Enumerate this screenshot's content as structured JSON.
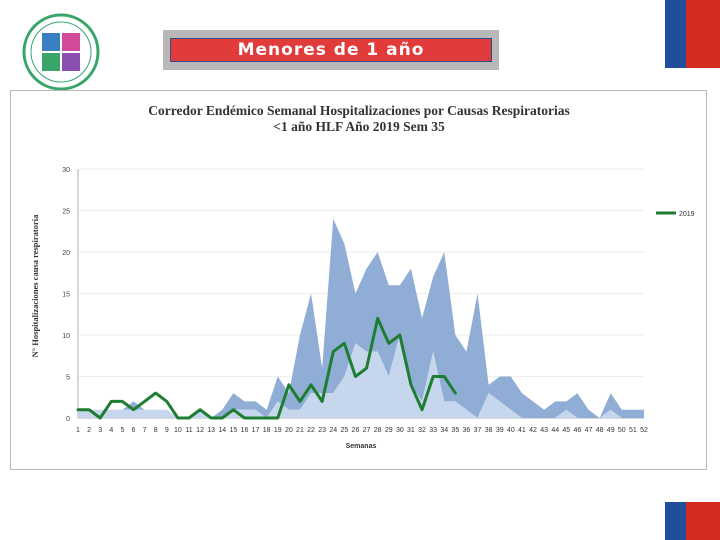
{
  "banner": {
    "title": "Menores de 1 año"
  },
  "colors": {
    "accent_red": "#e23b3b",
    "flag_blue": "#1f4e9c",
    "flag_red": "#d52b1e"
  },
  "chart_data": {
    "type": "area",
    "title": "Corredor Endémico Semanal Hospitalizaciones por Causas Respiratorias",
    "subtitle": "<1 año HLF Año 2019 Sem 35",
    "xlabel": "Semanas",
    "ylabel": "N° Hospitalizaciones causa respiratoria",
    "ylim": [
      0,
      30
    ],
    "yticks": [
      "0",
      "5",
      "10",
      "15",
      "20",
      "25",
      "30"
    ],
    "legend_position": "right",
    "x": [
      1,
      2,
      3,
      4,
      5,
      6,
      7,
      8,
      9,
      10,
      11,
      12,
      13,
      14,
      15,
      16,
      17,
      18,
      19,
      20,
      21,
      22,
      23,
      24,
      25,
      26,
      27,
      28,
      29,
      30,
      31,
      32,
      33,
      34,
      35,
      36,
      37,
      38,
      39,
      40,
      41,
      42,
      43,
      44,
      45,
      46,
      47,
      48,
      49,
      50,
      51,
      52
    ],
    "bands": {
      "upper": [
        1,
        1,
        1,
        1,
        1,
        2,
        1,
        1,
        1,
        0,
        0,
        1,
        0,
        1,
        3,
        2,
        2,
        1,
        5,
        3,
        10,
        15,
        6,
        24,
        21,
        15,
        18,
        20,
        16,
        16,
        18,
        12,
        17,
        20,
        10,
        8,
        15,
        4,
        5,
        5,
        3,
        2,
        1,
        2,
        2,
        3,
        1,
        0,
        3,
        1,
        1,
        1
      ],
      "lower": [
        1,
        1,
        1,
        1,
        1,
        1,
        1,
        1,
        1,
        0,
        0,
        1,
        0,
        0,
        1,
        1,
        1,
        0,
        2,
        1,
        1,
        3,
        3,
        3,
        5,
        9,
        8,
        8,
        5,
        10,
        4,
        2,
        8,
        2,
        2,
        1,
        0,
        3,
        2,
        1,
        0,
        0,
        0,
        0,
        1,
        0,
        0,
        0,
        1,
        0,
        0,
        0
      ]
    },
    "series": [
      {
        "name": "2019",
        "color": "#1e7d32",
        "x": [
          1,
          2,
          3,
          4,
          5,
          6,
          7,
          8,
          9,
          10,
          11,
          12,
          13,
          14,
          15,
          16,
          17,
          18,
          19,
          20,
          21,
          22,
          23,
          24,
          25,
          26,
          27,
          28,
          29,
          30,
          31,
          32,
          33,
          34,
          35
        ],
        "values": [
          1,
          1,
          0,
          2,
          2,
          1,
          2,
          3,
          2,
          0,
          0,
          1,
          0,
          0,
          1,
          0,
          0,
          0,
          0,
          4,
          2,
          4,
          2,
          8,
          9,
          5,
          6,
          12,
          9,
          10,
          4,
          1,
          5,
          5,
          3
        ]
      }
    ]
  }
}
